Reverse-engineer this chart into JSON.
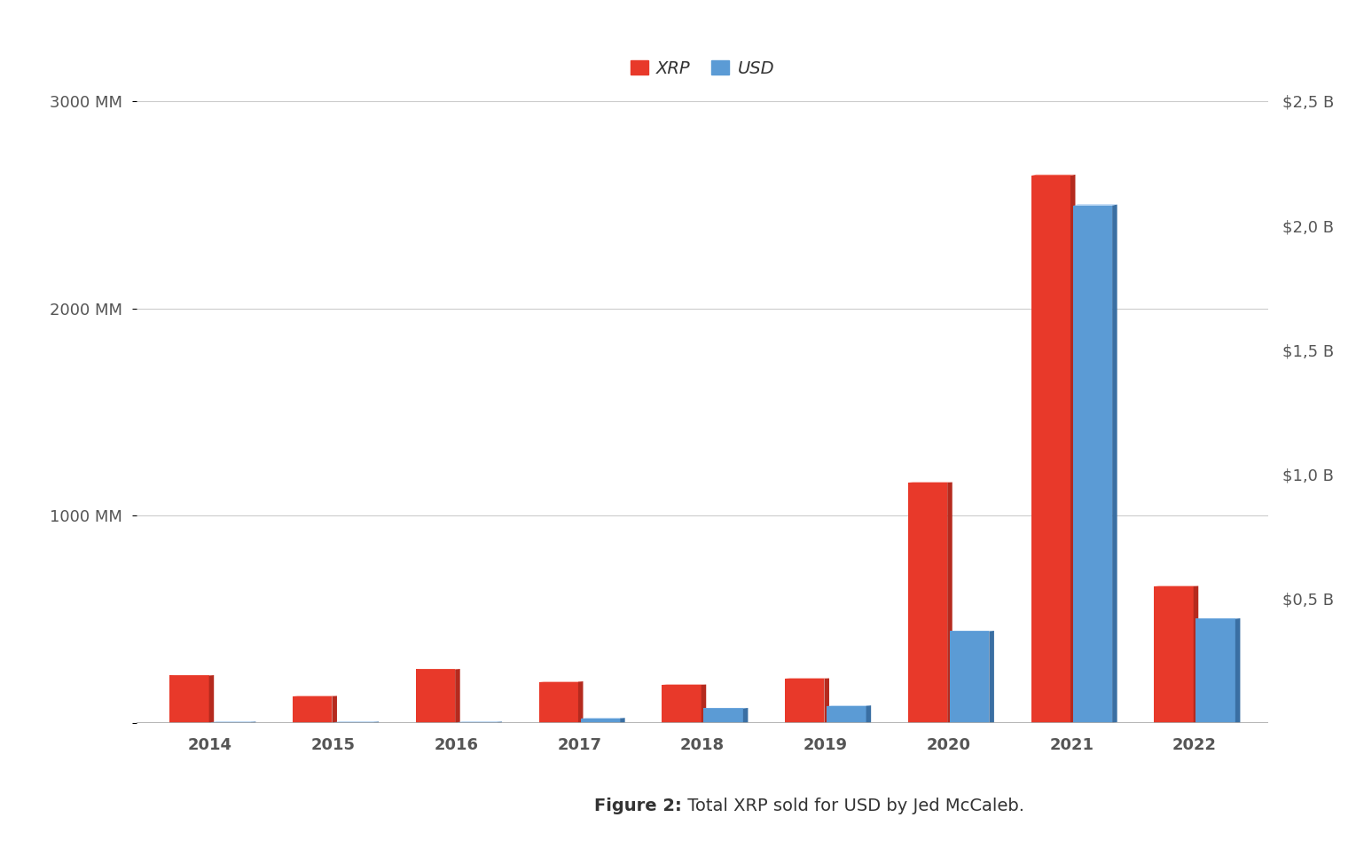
{
  "years": [
    "2014",
    "2015",
    "2016",
    "2017",
    "2018",
    "2019",
    "2020",
    "2021",
    "2022"
  ],
  "xrp_mm": [
    230,
    130,
    260,
    200,
    185,
    215,
    1160,
    2640,
    660
  ],
  "usd_b": [
    0.005,
    0.005,
    0.005,
    0.02,
    0.06,
    0.07,
    0.37,
    2.08,
    0.42
  ],
  "xrp_color": "#e8392a",
  "usd_color": "#5b9bd5",
  "xrp_color_dark": "#b52a1e",
  "usd_color_dark": "#3a6fa3",
  "xrp_color_top": "#f06050",
  "usd_color_top": "#7fb3e8",
  "background_color": "#ffffff",
  "legend_xrp": "XRP",
  "legend_usd": "USD",
  "ylim_left": [
    0,
    3000
  ],
  "ylim_right": [
    0,
    2.5
  ],
  "yticks_left": [
    0,
    1000,
    2000,
    3000
  ],
  "ytick_labels_left": [
    "",
    "1000 MM",
    "2000 MM",
    "3000 MM"
  ],
  "yticks_right": [
    0,
    0.5,
    1.0,
    1.5,
    2.0,
    2.5
  ],
  "ytick_labels_right": [
    "",
    "$0,5 B",
    "$1,0 B",
    "$1,5 B",
    "$2,0 B",
    "$2,5 B"
  ],
  "grid_color": "#cccccc",
  "caption_bold": "Figure 2:",
  "caption_rest": " Total XRP sold for USD by Jed McCaleb."
}
